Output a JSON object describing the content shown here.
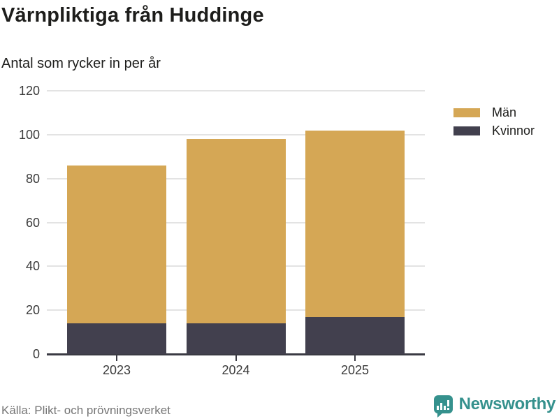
{
  "title": "Värnpliktiga från Huddinge",
  "subtitle": "Antal som rycker in per år",
  "source": "Källa: Plikt- och prövningsverket",
  "branding": {
    "name": "Newsworthy",
    "color": "#35918d",
    "icon": "bar-chart-speech-bubble-icon"
  },
  "legend": [
    {
      "label": "Män",
      "color": "#d5a755"
    },
    {
      "label": "Kvinnor",
      "color": "#42404e"
    }
  ],
  "colors": {
    "men": "#d5a755",
    "women": "#42404e",
    "gridline": "#e3e3e3",
    "axis": "#3a3a43",
    "text": "#1d1d1b",
    "muted_text": "#757575"
  },
  "chart_data": {
    "type": "bar",
    "stacked": true,
    "title": "Värnpliktiga från Huddinge",
    "subtitle": "Antal som rycker in per år",
    "xlabel": "",
    "ylabel": "Antal som rycker in per år",
    "categories": [
      "2023",
      "2024",
      "2025"
    ],
    "series": [
      {
        "name": "Män",
        "color": "#d5a755",
        "values": [
          72,
          84,
          85
        ]
      },
      {
        "name": "Kvinnor",
        "color": "#42404e",
        "values": [
          14,
          14,
          17
        ]
      }
    ],
    "stack_order_bottom_to_top": [
      "Kvinnor",
      "Män"
    ],
    "totals": [
      86,
      98,
      102
    ],
    "ylim": [
      0,
      120
    ],
    "yticks": [
      0,
      20,
      40,
      60,
      80,
      100,
      120
    ],
    "grid": true,
    "legend_position": "right"
  }
}
